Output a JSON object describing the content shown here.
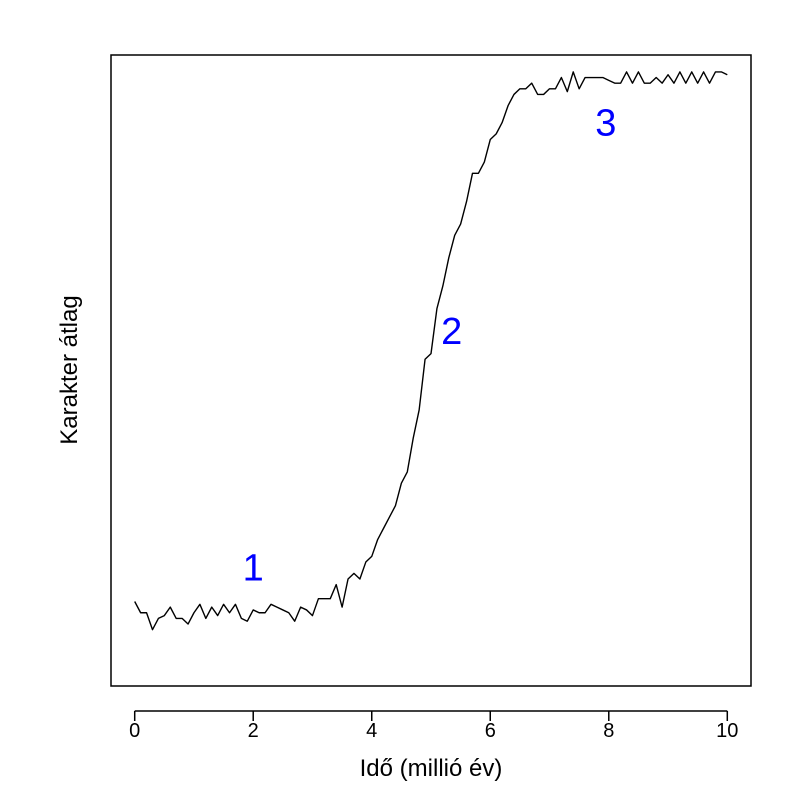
{
  "chart_data": {
    "type": "line",
    "title": "",
    "xlabel": "Idő (millió év)",
    "ylabel": "Karakter átlag",
    "xlim": [
      -0.4,
      10.4
    ],
    "ylim": [
      -0.06,
      1.06
    ],
    "xticks": [
      0,
      2,
      4,
      6,
      8,
      10
    ],
    "yticks_shown": false,
    "grid": false,
    "series": [
      {
        "color": "#000000",
        "x": [
          0.0,
          0.1,
          0.2,
          0.3,
          0.4,
          0.5,
          0.6,
          0.7,
          0.8,
          0.9,
          1.0,
          1.1,
          1.2,
          1.3,
          1.4,
          1.5,
          1.6,
          1.7,
          1.8,
          1.9,
          2.0,
          2.1,
          2.2,
          2.3,
          2.4,
          2.5,
          2.6,
          2.7,
          2.8,
          2.9,
          3.0,
          3.1,
          3.2,
          3.3,
          3.4,
          3.5,
          3.6,
          3.7,
          3.8,
          3.9,
          4.0,
          4.1,
          4.2,
          4.3,
          4.4,
          4.5,
          4.6,
          4.7,
          4.8,
          4.9,
          5.0,
          5.1,
          5.2,
          5.3,
          5.4,
          5.5,
          5.6,
          5.7,
          5.8,
          5.9,
          6.0,
          6.1,
          6.2,
          6.3,
          6.4,
          6.5,
          6.6,
          6.7,
          6.8,
          6.9,
          7.0,
          7.1,
          7.2,
          7.3,
          7.4,
          7.5,
          7.6,
          7.7,
          7.8,
          7.9,
          8.0,
          8.1,
          8.2,
          8.3,
          8.4,
          8.5,
          8.6,
          8.7,
          8.8,
          8.9,
          9.0,
          9.1,
          9.2,
          9.3,
          9.4,
          9.5,
          9.6,
          9.7,
          9.8,
          9.9,
          10.0
        ],
        "values": [
          0.09,
          0.07,
          0.07,
          0.04,
          0.06,
          0.065,
          0.08,
          0.06,
          0.06,
          0.05,
          0.07,
          0.085,
          0.06,
          0.08,
          0.065,
          0.085,
          0.07,
          0.085,
          0.06,
          0.055,
          0.075,
          0.07,
          0.07,
          0.085,
          0.08,
          0.075,
          0.07,
          0.055,
          0.08,
          0.075,
          0.065,
          0.095,
          0.095,
          0.095,
          0.12,
          0.08,
          0.13,
          0.14,
          0.13,
          0.16,
          0.17,
          0.2,
          0.22,
          0.24,
          0.26,
          0.3,
          0.32,
          0.38,
          0.43,
          0.52,
          0.53,
          0.61,
          0.65,
          0.7,
          0.74,
          0.76,
          0.8,
          0.85,
          0.85,
          0.87,
          0.91,
          0.92,
          0.94,
          0.97,
          0.99,
          1.0,
          1.0,
          1.01,
          0.99,
          0.99,
          1.0,
          1.0,
          1.02,
          0.995,
          1.03,
          1.0,
          1.02,
          1.02,
          1.02,
          1.02,
          1.015,
          1.01,
          1.01,
          1.03,
          1.01,
          1.03,
          1.01,
          1.01,
          1.02,
          1.01,
          1.025,
          1.01,
          1.03,
          1.01,
          1.03,
          1.01,
          1.03,
          1.01,
          1.03,
          1.03,
          1.025
        ]
      }
    ],
    "annotations": [
      {
        "text": "1",
        "x": 2.0,
        "y": 0.15,
        "color": "#0000ff"
      },
      {
        "text": "2",
        "x": 5.35,
        "y": 0.57,
        "color": "#0000ff"
      },
      {
        "text": "3",
        "x": 7.95,
        "y": 0.94,
        "color": "#0000ff"
      }
    ]
  }
}
